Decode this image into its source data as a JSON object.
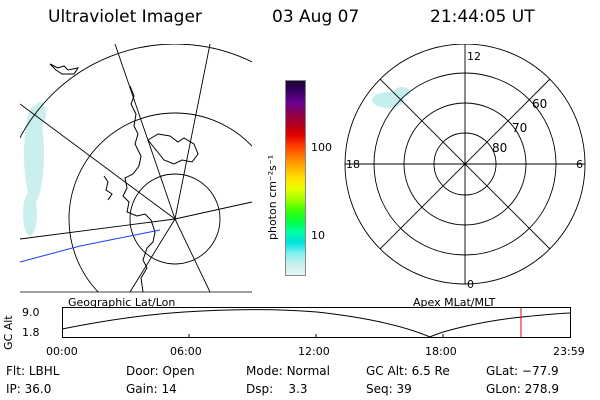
{
  "header": {
    "instrument": "Ultraviolet Imager",
    "date": "03 Aug 07",
    "time": "21:44:05 UT"
  },
  "colors": {
    "coastline": "#000000",
    "grid": "#000000",
    "terminator": "#1a3cff",
    "aurora": "#bfeeee",
    "time_marker": "#e00000"
  },
  "colorbar": {
    "unit_label": "photon cm⁻²s⁻¹",
    "ticks": [
      "100",
      "10"
    ],
    "scale": "log",
    "colors": [
      "#1a0033",
      "#3a0066",
      "#6a0090",
      "#8a0050",
      "#b00020",
      "#e00000",
      "#ff3a00",
      "#ff7a00",
      "#ffb000",
      "#ffe000",
      "#e8ff00",
      "#a0ff00",
      "#40ff00",
      "#00ff40",
      "#00ffa0",
      "#00e0e0",
      "#80f0f0",
      "#c8f0f0",
      "#e8f4f4"
    ]
  },
  "geo_map": {
    "caption": "Geographic Lat/Lon"
  },
  "polar_map": {
    "caption": "Apex MLat/MLT",
    "mlt_labels": [
      "12",
      "18",
      "6",
      "0"
    ],
    "mlat_labels": [
      "60",
      "70",
      "80"
    ]
  },
  "altitude_plot": {
    "axis_label": "GC Alt",
    "y_ticks": [
      "9.0",
      "1.8"
    ],
    "x_ticks": [
      "00:00",
      "06:00",
      "12:00",
      "18:00",
      "23:59"
    ],
    "marker_time": "21:44"
  },
  "info": {
    "row1": [
      {
        "label": "Flt:",
        "value": "LBHL"
      },
      {
        "label": "Door:",
        "value": "Open"
      },
      {
        "label": "Mode:",
        "value": "Normal"
      },
      {
        "label": "GC Alt:",
        "value": "6.5 Re"
      },
      {
        "label": "GLat:",
        "value": "−77.9"
      }
    ],
    "row2": [
      {
        "label": "IP:",
        "value": "36.0"
      },
      {
        "label": "Gain:",
        "value": "14"
      },
      {
        "label": "Dsp:",
        "value": "3.3"
      },
      {
        "label": "Seq:",
        "value": "39"
      },
      {
        "label": "GLon:",
        "value": "278.9"
      }
    ]
  }
}
